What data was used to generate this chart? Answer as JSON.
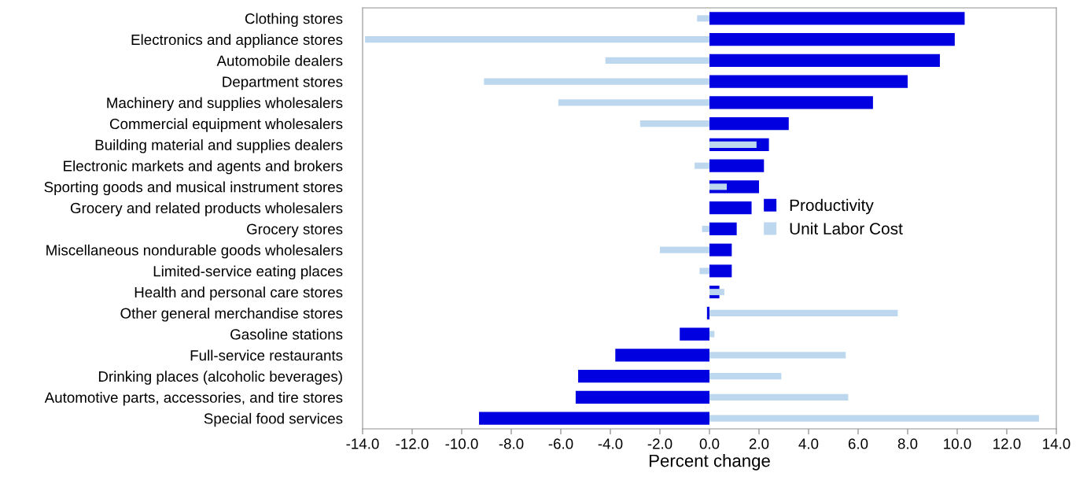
{
  "chart_data": {
    "type": "bar",
    "orientation": "horizontal",
    "xlabel": "Percent change",
    "categories": [
      "Clothing stores",
      "Electronics and appliance stores",
      "Automobile dealers",
      "Department stores",
      "Machinery and supplies wholesalers",
      "Commercial equipment wholesalers",
      "Building material and supplies dealers",
      "Electronic markets and agents and brokers",
      "Sporting goods and musical instrument stores",
      "Grocery and related products wholesalers",
      "Grocery stores",
      "Miscellaneous nondurable goods wholesalers",
      "Limited-service eating places",
      "Health and personal care stores",
      "Other general merchandise stores",
      "Gasoline stations",
      "Full-service restaurants",
      "Drinking places (alcoholic beverages)",
      "Automotive parts, accessories, and tire stores",
      "Special food services"
    ],
    "series": [
      {
        "name": "Productivity",
        "color": "#0000e0",
        "values": [
          10.3,
          9.9,
          9.3,
          8.0,
          6.6,
          3.2,
          2.4,
          2.2,
          2.0,
          1.7,
          1.1,
          0.9,
          0.9,
          0.4,
          -0.1,
          -1.2,
          -3.8,
          -5.3,
          -5.4,
          -9.3
        ]
      },
      {
        "name": "Unit Labor Cost",
        "color": "#bdd7ee",
        "values": [
          -0.5,
          -13.9,
          -4.2,
          -9.1,
          -6.1,
          -2.8,
          1.9,
          -0.6,
          0.7,
          0.0,
          -0.3,
          -2.0,
          -0.4,
          0.6,
          7.6,
          0.2,
          5.5,
          2.9,
          5.6,
          13.3
        ]
      }
    ],
    "xlim": [
      -14,
      14
    ],
    "xticks": [
      {
        "value": -14,
        "label": "-14.0"
      },
      {
        "value": -12,
        "label": "-12.0"
      },
      {
        "value": -10,
        "label": "-10.0"
      },
      {
        "value": -8,
        "label": "-8.0"
      },
      {
        "value": -6,
        "label": "-6.0"
      },
      {
        "value": -4,
        "label": "-4.0"
      },
      {
        "value": -2,
        "label": "-2.0"
      },
      {
        "value": 0,
        "label": "0.0"
      },
      {
        "value": 2,
        "label": "2.0"
      },
      {
        "value": 4,
        "label": "4.0"
      },
      {
        "value": 6,
        "label": "6.0"
      },
      {
        "value": 8,
        "label": "8.0"
      },
      {
        "value": 10,
        "label": "10.0"
      },
      {
        "value": 12,
        "label": "12.0"
      },
      {
        "value": 14,
        "label": "14.0"
      }
    ],
    "legend": "right",
    "grid": false
  }
}
